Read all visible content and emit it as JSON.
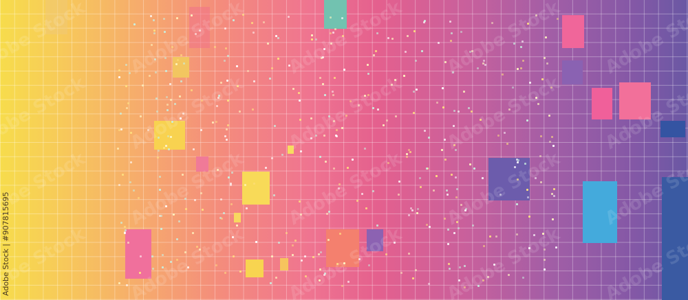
{
  "image": {
    "description_type": "abstract gradient grid background with squares and dots",
    "colors": {
      "left": "#f7dc4c",
      "center": "#ef7490",
      "right": "#6a58a4"
    },
    "credit": "Adobe Stock | #907815695",
    "watermark": "Adobe Stock"
  }
}
